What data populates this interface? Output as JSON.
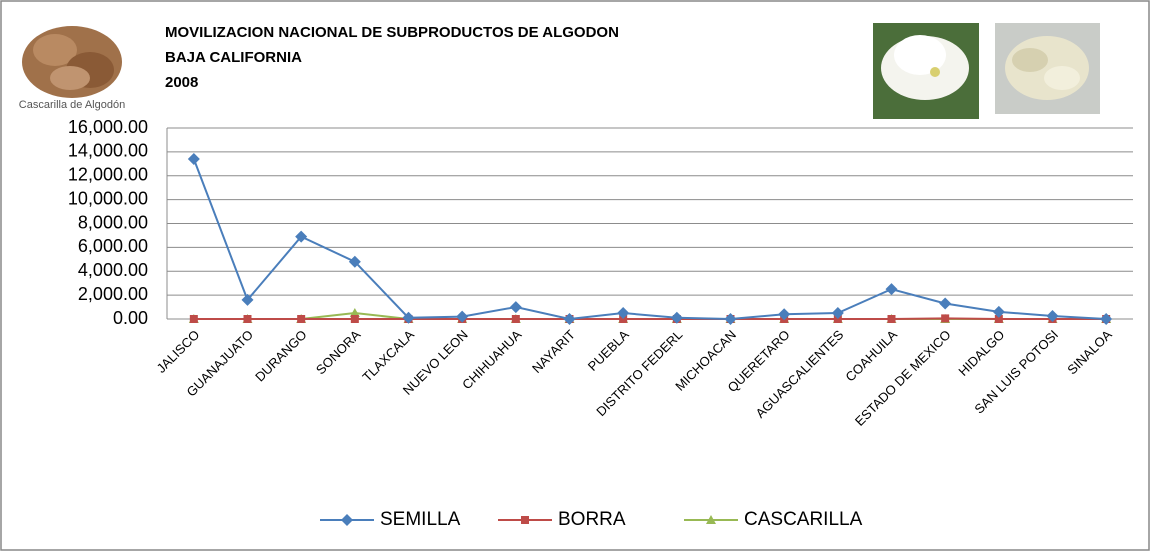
{
  "chart_data": {
    "type": "line",
    "title": [
      "MOVILIZACION NACIONAL DE SUBPRODUCTOS DE ALGODON",
      "BAJA CALIFORNIA",
      "2008"
    ],
    "annotations": [
      "Cascarilla de Algodón"
    ],
    "categories": [
      "JALISCO",
      "GUANAJUATO",
      "DURANGO",
      "SONORA",
      "TLAXCALA",
      "NUEVO LEON",
      "CHIHUAHUA",
      "NAYARIT",
      "PUEBLA",
      "DISTRITO FEDERL",
      "MICHOACAN",
      "QUERETARO",
      "AGUASCALIENTES",
      "COAHUILA",
      "ESTADO DE MEXICO",
      "HIDALGO",
      "SAN LUIS POTOSI",
      "SINALOA"
    ],
    "series": [
      {
        "name": "SEMILLA",
        "color": "#4a7ebb",
        "marker": "diamond",
        "values": [
          13400,
          1600,
          6900,
          4800,
          100,
          200,
          1000,
          0,
          500,
          100,
          0,
          400,
          500,
          2500,
          1300,
          600,
          250,
          0
        ]
      },
      {
        "name": "BORRA",
        "color": "#be4b48",
        "marker": "square",
        "values": [
          0,
          0,
          0,
          0,
          0,
          0,
          0,
          0,
          0,
          0,
          0,
          0,
          0,
          0,
          50,
          0,
          0,
          0
        ]
      },
      {
        "name": "CASCARILLA",
        "color": "#98b954",
        "marker": "triangle",
        "values": [
          0,
          0,
          0,
          500,
          0,
          0,
          0,
          0,
          0,
          0,
          0,
          0,
          0,
          0,
          0,
          0,
          0,
          0
        ]
      }
    ],
    "ylim": [
      0,
      16000
    ],
    "yticks": [
      {
        "value": 0,
        "label": "0.00"
      },
      {
        "value": 2000,
        "label": "2,000.00"
      },
      {
        "value": 4000,
        "label": "4,000.00"
      },
      {
        "value": 6000,
        "label": "6,000.00"
      },
      {
        "value": 8000,
        "label": "8,000.00"
      },
      {
        "value": 10000,
        "label": "10,000.00"
      },
      {
        "value": 12000,
        "label": "12,000.00"
      },
      {
        "value": 14000,
        "label": "14,000.00"
      },
      {
        "value": 16000,
        "label": "16,000.00"
      }
    ],
    "grid": true,
    "legend": "bottom"
  }
}
